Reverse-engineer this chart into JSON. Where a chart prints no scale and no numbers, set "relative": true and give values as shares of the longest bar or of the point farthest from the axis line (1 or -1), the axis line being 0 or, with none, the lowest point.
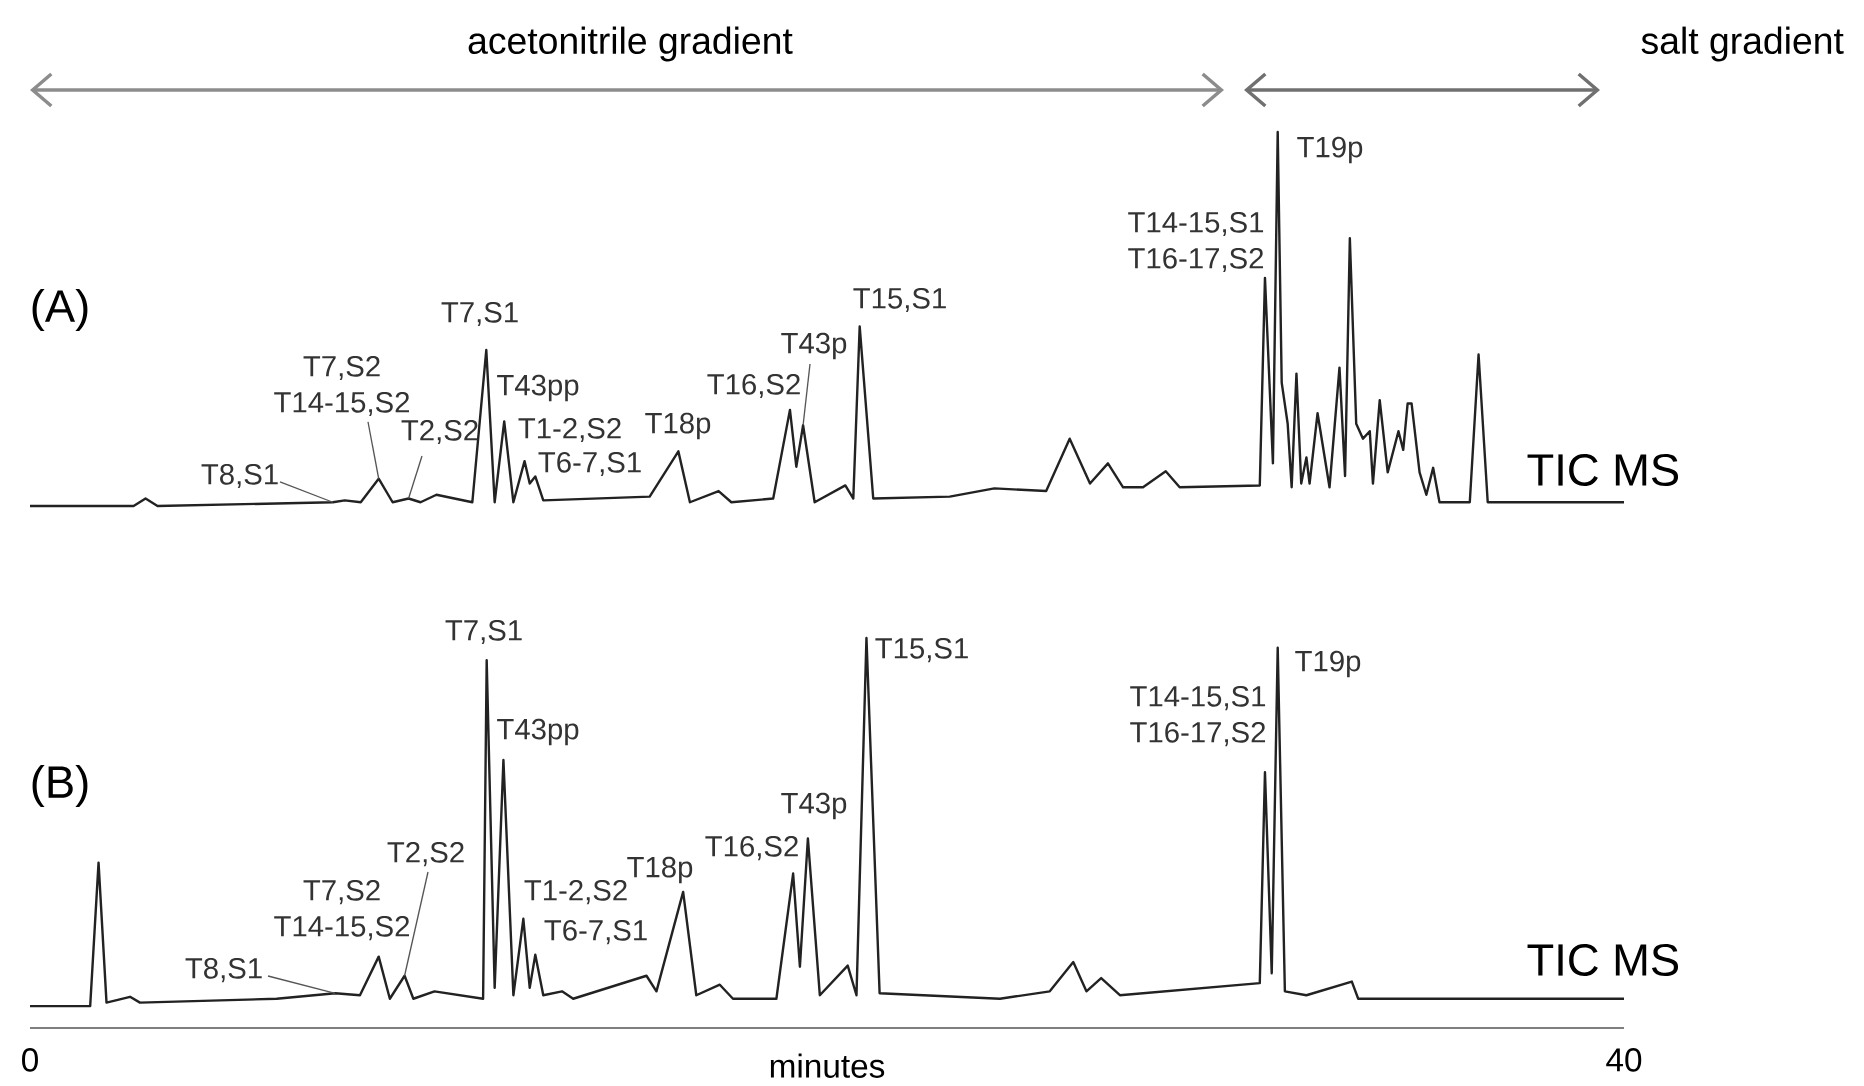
{
  "chart_data": [
    {
      "type": "line",
      "title": "(A)",
      "relative": true,
      "xlim": [
        0,
        40
      ],
      "tick_labels": false,
      "x": [
        0,
        2.6,
        2.9,
        3.2,
        7.6,
        7.9,
        8.3,
        8.75,
        9.1,
        9.5,
        9.8,
        10.2,
        11.1,
        11.45,
        11.66,
        11.9,
        12.13,
        12.41,
        12.54,
        12.68,
        12.88,
        15.55,
        16.27,
        16.56,
        17.28,
        17.6,
        18.65,
        19.07,
        19.23,
        19.4,
        19.69,
        20.46,
        20.66,
        20.82,
        21.16,
        23.08,
        24.2,
        25.5,
        26.09,
        26.6,
        27.05,
        27.43,
        27.93,
        28.5,
        28.85,
        30.86,
        30.99,
        31.19,
        31.31,
        31.41,
        31.56,
        31.66,
        31.78,
        31.9,
        32.03,
        32.11,
        32.31,
        32.61,
        32.86,
        33.0,
        33.12,
        33.28,
        33.45,
        33.62,
        33.7,
        33.87,
        34.07,
        34.34,
        34.46,
        34.57,
        34.67,
        34.87,
        35.04,
        35.21,
        35.37,
        36.13,
        36.35,
        36.58,
        40
      ],
      "series": [
        {
          "name": "TIC  MS",
          "color": "#222222",
          "values": [
            0,
            0,
            0.02,
            0,
            0.01,
            0.015,
            0.01,
            0.073,
            0.01,
            0.02,
            0.01,
            0.03,
            0.01,
            0.417,
            0.01,
            0.226,
            0.01,
            0.12,
            0.06,
            0.079,
            0.015,
            0.025,
            0.146,
            0.01,
            0.04,
            0.01,
            0.02,
            0.257,
            0.105,
            0.216,
            0.01,
            0.055,
            0.02,
            0.48,
            0.02,
            0.025,
            0.047,
            0.04,
            0.18,
            0.06,
            0.114,
            0.05,
            0.05,
            0.093,
            0.05,
            0.055,
            0.61,
            0.114,
            1,
            0.33,
            0.22,
            0.05,
            0.354,
            0.06,
            0.13,
            0.06,
            0.248,
            0.05,
            0.37,
            0.08,
            0.716,
            0.22,
            0.18,
            0.2,
            0.06,
            0.283,
            0.09,
            0.2,
            0.15,
            0.274,
            0.274,
            0.09,
            0.03,
            0.102,
            0.01,
            0.01,
            0.405,
            0.01,
            0.01
          ]
        }
      ],
      "annotations": [
        "acetonitrile gradient",
        "salt gradient",
        {
          "text": "T8,S1",
          "x": 7.6,
          "y": 0.01
        },
        {
          "text": "T7,S2 T14-15,S2",
          "x": 8.75,
          "y": 0.073
        },
        {
          "text": "T2,S2",
          "x": 9.5,
          "y": 0.02
        },
        {
          "text": "T7,S1",
          "x": 11.45,
          "y": 0.417
        },
        {
          "text": "T43pp",
          "x": 11.9,
          "y": 0.226
        },
        {
          "text": "T1-2,S2",
          "x": 12.41,
          "y": 0.12
        },
        {
          "text": "T6-7,S1",
          "x": 12.68,
          "y": 0.079
        },
        {
          "text": "T18p",
          "x": 16.27,
          "y": 0.146
        },
        {
          "text": "T16,S2",
          "x": 19.07,
          "y": 0.257
        },
        {
          "text": "T43p",
          "x": 19.4,
          "y": 0.216
        },
        {
          "text": "T15,S1",
          "x": 20.82,
          "y": 0.48
        },
        {
          "text": "T14-15,S1 T16-17,S2",
          "x": 30.99,
          "y": 0.61
        },
        {
          "text": "T19p",
          "x": 31.31,
          "y": 1
        }
      ]
    },
    {
      "type": "line",
      "title": "(B)",
      "relative": true,
      "xlim": [
        0,
        40
      ],
      "xticks": [
        0,
        40
      ],
      "xlabel": "minutes",
      "tick_labels": "x",
      "x": [
        0,
        1.51,
        1.72,
        1.92,
        2.51,
        2.76,
        6.19,
        7.66,
        8.28,
        8.75,
        9.03,
        9.4,
        9.62,
        10.15,
        11.37,
        11.46,
        11.66,
        11.88,
        12.13,
        12.38,
        12.54,
        12.68,
        12.88,
        13.35,
        13.63,
        15.47,
        15.72,
        16.39,
        16.72,
        17.31,
        17.64,
        18.73,
        19.15,
        19.32,
        19.52,
        19.82,
        20.52,
        20.74,
        20.99,
        21.32,
        24.34,
        25.59,
        26.18,
        26.51,
        26.88,
        27.35,
        30.86,
        30.99,
        31.16,
        31.31,
        31.49,
        32.03,
        33.17,
        33.33,
        40
      ],
      "series": [
        {
          "name": "TIC  MS",
          "color": "#222222",
          "values": [
            0.056,
            0.056,
            0.424,
            0.065,
            0.08,
            0.065,
            0.075,
            0.089,
            0.084,
            0.183,
            0.075,
            0.134,
            0.075,
            0.094,
            0.075,
            0.943,
            0.103,
            0.687,
            0.084,
            0.28,
            0.103,
            0.188,
            0.084,
            0.094,
            0.075,
            0.134,
            0.094,
            0.349,
            0.084,
            0.111,
            0.075,
            0.075,
            0.396,
            0.157,
            0.486,
            0.084,
            0.16,
            0.084,
            1,
            0.089,
            0.075,
            0.094,
            0.169,
            0.094,
            0.128,
            0.084,
            0.115,
            0.656,
            0.14,
            0.975,
            0.094,
            0.084,
            0.119,
            0.075,
            0.075
          ]
        }
      ],
      "annotations": [
        {
          "text": "T8,S1",
          "x": 7.66,
          "y": 0.089
        },
        {
          "text": "T7,S2 T14-15,S2",
          "x": 8.75,
          "y": 0.183
        },
        {
          "text": "T2,S2",
          "x": 9.4,
          "y": 0.134
        },
        {
          "text": "T7,S1",
          "x": 11.46,
          "y": 0.943
        },
        {
          "text": "T43pp",
          "x": 11.88,
          "y": 0.687
        },
        {
          "text": "T1-2,S2",
          "x": 12.38,
          "y": 0.28
        },
        {
          "text": "T6-7,S1",
          "x": 12.68,
          "y": 0.188
        },
        {
          "text": "T18p",
          "x": 16.39,
          "y": 0.349
        },
        {
          "text": "T16,S2",
          "x": 19.15,
          "y": 0.396
        },
        {
          "text": "T43p",
          "x": 19.52,
          "y": 0.486
        },
        {
          "text": "T15,S1",
          "x": 20.99,
          "y": 1
        },
        {
          "text": "T14-15,S1 T16-17,S2",
          "x": 30.99,
          "y": 0.656
        },
        {
          "text": "T19p",
          "x": 31.31,
          "y": 0.975
        }
      ]
    }
  ]
}
